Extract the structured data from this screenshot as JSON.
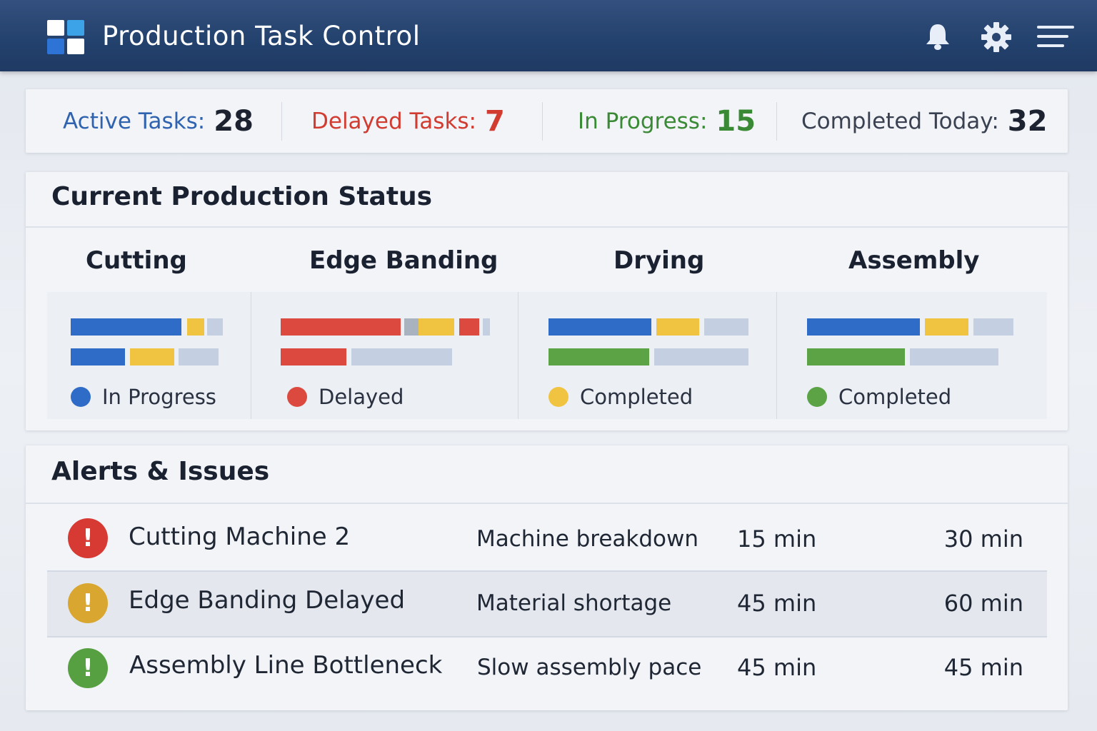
{
  "header": {
    "title": "Production Task Control",
    "icons": [
      "logo-icon",
      "bell-icon",
      "gear-icon",
      "menu-icon"
    ]
  },
  "stats": [
    {
      "label": "Active Tasks:",
      "value": "28",
      "color": "#2f63b0",
      "value_color": "#1c2230"
    },
    {
      "label": "Delayed Tasks:",
      "value": "7",
      "color": "#d13b30",
      "value_color": "#d13b30"
    },
    {
      "label": "In Progress:",
      "value": "15",
      "color": "#3a8a35",
      "value_color": "#3a8a35"
    },
    {
      "label": "Completed Today:",
      "value": "32",
      "color": "#3a4150",
      "value_color": "#1c2230"
    }
  ],
  "status": {
    "title": "Current Production Status",
    "stages": [
      {
        "name": "Cutting",
        "legend": "In Progress",
        "legend_color": "#2f6cc7"
      },
      {
        "name": "Edge Banding",
        "legend": "Delayed",
        "legend_color": "#dc4a3f"
      },
      {
        "name": "Drying",
        "legend": "Completed",
        "legend_color": "#f0c440"
      },
      {
        "name": "Assembly",
        "legend": "Completed",
        "legend_color": "#5ba345"
      }
    ],
    "colors": {
      "blue": "#2f6cc7",
      "red": "#dc4a3f",
      "yellow": "#f0c440",
      "green": "#5ba345",
      "gray": "#c4cfe2"
    }
  },
  "alerts": {
    "title": "Alerts & Issues",
    "rows": [
      {
        "name": "Cutting Machine 2",
        "reason": "Machine breakdown",
        "time1": "15 min",
        "time2": "30 min",
        "icon": "alert-icon",
        "color": "#d63a33"
      },
      {
        "name": "Edge Banding Delayed",
        "reason": "Material shortage",
        "time1": "45 min",
        "time2": "60 min",
        "icon": "alert-icon",
        "color": "#d9a630"
      },
      {
        "name": "Assembly Line Bottleneck",
        "reason": "Slow assembly pace",
        "time1": "45 min",
        "time2": "45 min",
        "icon": "alert-icon",
        "color": "#56a042"
      }
    ],
    "icon_glyph": "!"
  }
}
